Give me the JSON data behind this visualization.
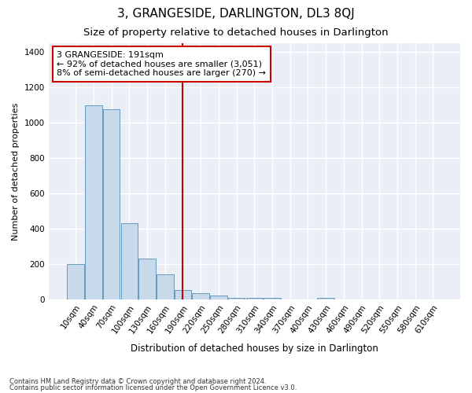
{
  "title": "3, GRANGESIDE, DARLINGTON, DL3 8QJ",
  "subtitle": "Size of property relative to detached houses in Darlington",
  "xlabel": "Distribution of detached houses by size in Darlington",
  "ylabel": "Number of detached properties",
  "footnote1": "Contains HM Land Registry data © Crown copyright and database right 2024.",
  "footnote2": "Contains public sector information licensed under the Open Government Licence v3.0.",
  "bar_color": "#c8d9ec",
  "bar_edge_color": "#6699bb",
  "categories": [
    "10sqm",
    "40sqm",
    "70sqm",
    "100sqm",
    "130sqm",
    "160sqm",
    "190sqm",
    "220sqm",
    "250sqm",
    "280sqm",
    "310sqm",
    "340sqm",
    "370sqm",
    "400sqm",
    "430sqm",
    "460sqm",
    "490sqm",
    "520sqm",
    "550sqm",
    "580sqm",
    "610sqm"
  ],
  "values": [
    200,
    1100,
    1075,
    430,
    230,
    140,
    55,
    35,
    20,
    10,
    10,
    10,
    0,
    0,
    10,
    0,
    0,
    0,
    0,
    0,
    0
  ],
  "vline_x_idx": 6,
  "vline_color": "#cc0000",
  "annotation_line1": "3 GRANGESIDE: 191sqm",
  "annotation_line2": "← 92% of detached houses are smaller (3,051)",
  "annotation_line3": "8% of semi-detached houses are larger (270) →",
  "annotation_box_color": "#ffffff",
  "annotation_box_edge": "#cc0000",
  "ylim": [
    0,
    1450
  ],
  "background_color": "#eaeff7",
  "grid_color": "#ffffff",
  "title_fontsize": 11,
  "subtitle_fontsize": 9.5,
  "xlabel_fontsize": 8.5,
  "ylabel_fontsize": 8,
  "tick_fontsize": 7.5,
  "annotation_fontsize": 8
}
